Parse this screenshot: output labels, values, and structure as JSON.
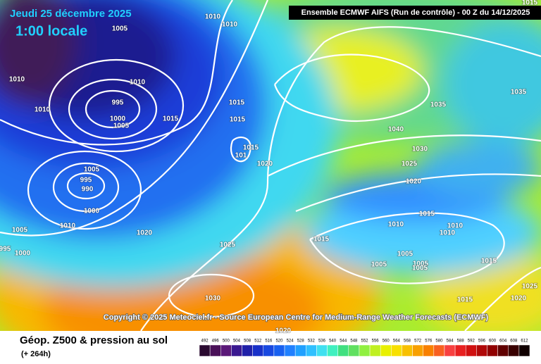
{
  "header": {
    "date": "Jeudi 25 décembre 2025",
    "time": "1:00 locale",
    "run": "Ensemble ECMWF AIFS  (Run de contrôle)  - 00 Z du 14/12/2025"
  },
  "copyright": "Copyright © 2025 Meteociel.fr - Source European Centre for Medium-Range Weather Forecasts (ECMWF)",
  "footer": {
    "title": "Géop. Z500 & pression au sol",
    "lead": "(+ 264h)"
  },
  "colorbar": {
    "labels": [
      492,
      496,
      500,
      504,
      508,
      512,
      516,
      520,
      524,
      528,
      532,
      536,
      540,
      544,
      548,
      552,
      556,
      560,
      564,
      568,
      572,
      576,
      580,
      584,
      588,
      592,
      596,
      600,
      604,
      608,
      612
    ],
    "colors": [
      "#2a0a30",
      "#4a1058",
      "#5a1878",
      "#3a1890",
      "#2020a8",
      "#1830c8",
      "#1848e0",
      "#1860f0",
      "#2080ff",
      "#20a0ff",
      "#30c0ff",
      "#40e0f0",
      "#40f0c0",
      "#40e080",
      "#60e060",
      "#90f040",
      "#c0f020",
      "#e8f000",
      "#f8e000",
      "#f8c000",
      "#f8a000",
      "#f88000",
      "#f86020",
      "#f84040",
      "#e82020",
      "#d01010",
      "#b00808",
      "#900000",
      "#600000",
      "#380000",
      "#100000"
    ]
  },
  "isobar_labels": [
    "1015",
    "1010",
    "1010",
    "1005",
    "1010",
    "1010",
    "995",
    "1010",
    "1015",
    "1000",
    "1005",
    "1015",
    "1015",
    "1035",
    "1035",
    "1040",
    "1030",
    "1015",
    "101",
    "1020",
    "1025",
    "1005",
    "995",
    "990",
    "1020",
    "1000",
    "1015",
    "1010",
    "1005",
    "1020",
    "1010",
    "1010",
    "1010",
    "995",
    "1000",
    "1015",
    "1025",
    "1005",
    "1005",
    "1005",
    "1005",
    "1015",
    "1025",
    "1030",
    "1015",
    "1020",
    "1020"
  ]
}
